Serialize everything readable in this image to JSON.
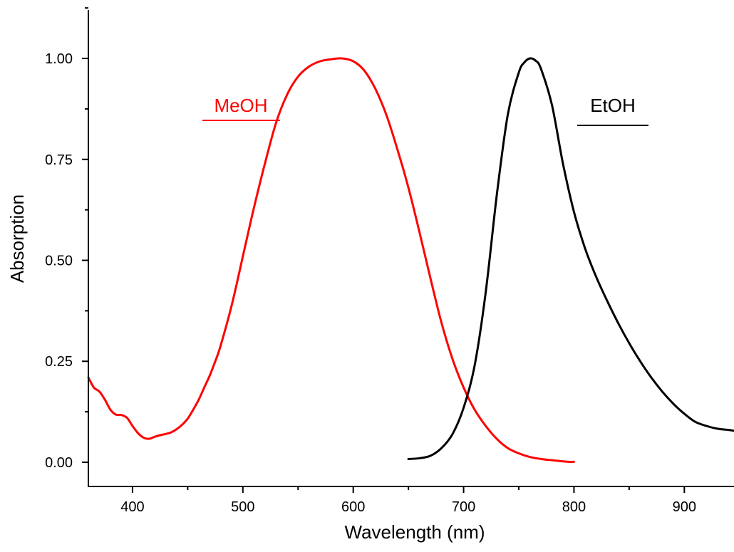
{
  "chart_data": {
    "type": "line",
    "title": "",
    "xlabel": "Wavelength (nm)",
    "ylabel": "Absorption",
    "xlim": [
      360,
      945
    ],
    "ylim": [
      -0.06,
      1.12
    ],
    "x_ticks": [
      400,
      500,
      600,
      700,
      800,
      900
    ],
    "x_tick_labels": [
      "400",
      "500",
      "600",
      "700",
      "800",
      "900"
    ],
    "x_minor_ticks": [
      450,
      550,
      650,
      750,
      850
    ],
    "y_ticks": [
      0.0,
      0.25,
      0.5,
      0.75,
      1.0
    ],
    "y_tick_labels": [
      "0.00",
      "0.25",
      "0.50",
      "0.75",
      "1.00"
    ],
    "y_minor_ticks": [
      0.125,
      0.375,
      0.625,
      0.875,
      1.125
    ],
    "grid": false,
    "legend": "inline labels",
    "series": [
      {
        "name": "MeOH",
        "color": "#ff0000",
        "points": [
          [
            360,
            0.21
          ],
          [
            365,
            0.185
          ],
          [
            370,
            0.175
          ],
          [
            375,
            0.155
          ],
          [
            380,
            0.13
          ],
          [
            385,
            0.118
          ],
          [
            390,
            0.117
          ],
          [
            395,
            0.11
          ],
          [
            400,
            0.09
          ],
          [
            405,
            0.072
          ],
          [
            410,
            0.061
          ],
          [
            415,
            0.058
          ],
          [
            420,
            0.063
          ],
          [
            425,
            0.067
          ],
          [
            430,
            0.07
          ],
          [
            435,
            0.074
          ],
          [
            440,
            0.082
          ],
          [
            445,
            0.093
          ],
          [
            450,
            0.108
          ],
          [
            455,
            0.13
          ],
          [
            460,
            0.155
          ],
          [
            465,
            0.185
          ],
          [
            470,
            0.215
          ],
          [
            475,
            0.25
          ],
          [
            480,
            0.29
          ],
          [
            490,
            0.39
          ],
          [
            500,
            0.51
          ],
          [
            510,
            0.63
          ],
          [
            520,
            0.74
          ],
          [
            530,
            0.84
          ],
          [
            540,
            0.91
          ],
          [
            550,
            0.955
          ],
          [
            560,
            0.98
          ],
          [
            570,
            0.993
          ],
          [
            580,
            0.998
          ],
          [
            590,
            1.0
          ],
          [
            600,
            0.993
          ],
          [
            610,
            0.97
          ],
          [
            620,
            0.925
          ],
          [
            630,
            0.86
          ],
          [
            640,
            0.775
          ],
          [
            650,
            0.68
          ],
          [
            660,
            0.57
          ],
          [
            670,
            0.455
          ],
          [
            680,
            0.345
          ],
          [
            690,
            0.255
          ],
          [
            700,
            0.185
          ],
          [
            710,
            0.13
          ],
          [
            720,
            0.09
          ],
          [
            730,
            0.058
          ],
          [
            740,
            0.035
          ],
          [
            750,
            0.022
          ],
          [
            760,
            0.013
          ],
          [
            770,
            0.008
          ],
          [
            780,
            0.005
          ],
          [
            790,
            0.002
          ],
          [
            795,
            0.001
          ],
          [
            800,
            0.001
          ]
        ]
      },
      {
        "name": "EtOH",
        "color": "#000000",
        "points": [
          [
            650,
            0.008
          ],
          [
            660,
            0.01
          ],
          [
            670,
            0.016
          ],
          [
            680,
            0.035
          ],
          [
            690,
            0.07
          ],
          [
            700,
            0.135
          ],
          [
            710,
            0.24
          ],
          [
            720,
            0.42
          ],
          [
            730,
            0.66
          ],
          [
            740,
            0.86
          ],
          [
            750,
            0.965
          ],
          [
            755,
            0.99
          ],
          [
            760,
            1.0
          ],
          [
            765,
            0.995
          ],
          [
            770,
            0.975
          ],
          [
            780,
            0.885
          ],
          [
            790,
            0.74
          ],
          [
            800,
            0.62
          ],
          [
            810,
            0.53
          ],
          [
            820,
            0.46
          ],
          [
            830,
            0.4
          ],
          [
            840,
            0.345
          ],
          [
            850,
            0.295
          ],
          [
            860,
            0.25
          ],
          [
            870,
            0.21
          ],
          [
            880,
            0.175
          ],
          [
            890,
            0.145
          ],
          [
            900,
            0.12
          ],
          [
            910,
            0.1
          ],
          [
            920,
            0.09
          ],
          [
            930,
            0.083
          ],
          [
            940,
            0.08
          ],
          [
            945,
            0.078
          ]
        ]
      }
    ]
  }
}
